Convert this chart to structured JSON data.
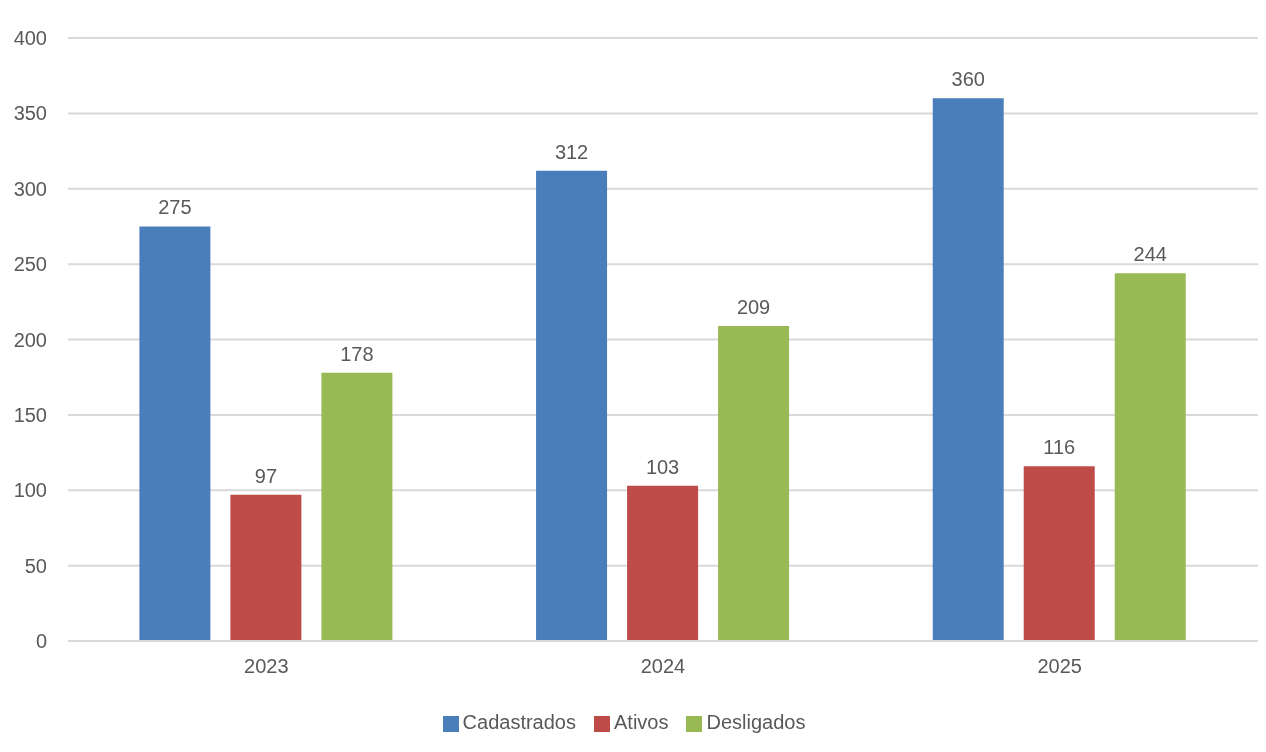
{
  "chart_data": {
    "type": "bar",
    "categories": [
      "2023",
      "2024",
      "2025"
    ],
    "series": [
      {
        "name": "Cadastrados",
        "color": "#4a7ebb",
        "values": [
          275,
          312,
          360
        ]
      },
      {
        "name": "Ativos",
        "color": "#be4b48",
        "values": [
          97,
          103,
          116
        ]
      },
      {
        "name": "Desligados",
        "color": "#98b954",
        "values": [
          178,
          209,
          244
        ]
      }
    ],
    "ylim": [
      0,
      400
    ],
    "yticks": [
      0,
      50,
      100,
      150,
      200,
      250,
      300,
      350,
      400
    ],
    "grid": "y",
    "legend": "bottom",
    "data_labels": true
  }
}
